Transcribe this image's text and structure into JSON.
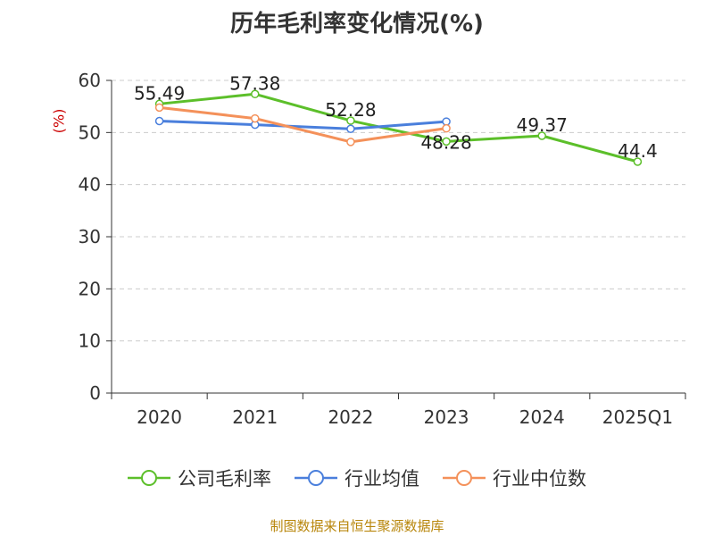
{
  "chart_data": {
    "type": "line",
    "title": "历年毛利率变化情况(%)",
    "ylabel": "(%)",
    "xlabel": "",
    "categories": [
      "2020",
      "2021",
      "2022",
      "2023",
      "2024",
      "2025Q1"
    ],
    "ylim": [
      0,
      60
    ],
    "yticks": [
      0,
      10,
      20,
      30,
      40,
      50,
      60
    ],
    "grid": true,
    "legend_position": "bottom",
    "series": [
      {
        "name": "公司毛利率",
        "color": "#5cbf2a",
        "values": [
          55.49,
          57.38,
          52.28,
          48.28,
          49.37,
          44.4
        ],
        "labels": [
          "55.49",
          "57.38",
          "52.28",
          "48.28",
          "49.37",
          "44.4"
        ]
      },
      {
        "name": "行业均值",
        "color": "#4a7fdc",
        "values": [
          52.2,
          51.5,
          50.7,
          52.1,
          null,
          null
        ]
      },
      {
        "name": "行业中位数",
        "color": "#f4915a",
        "values": [
          54.8,
          52.7,
          48.2,
          50.8,
          null,
          null
        ]
      }
    ],
    "source": "制图数据来自恒生聚源数据库"
  }
}
